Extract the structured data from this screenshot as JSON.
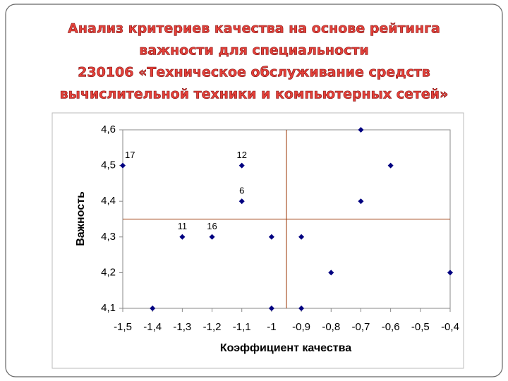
{
  "chart_data": {
    "type": "scatter",
    "title": [
      "Анализ критериев качества на основе рейтинга",
      "важности для специальности",
      "230106 «Техническое обслуживание средств",
      "вычислительной техники и компьютерных сетей»"
    ],
    "x_label": "Коэффициент качества",
    "y_label": "Важность",
    "x": [
      -1.5,
      -1.4,
      -1.3,
      -1.2,
      -1.1,
      -1.1,
      -1.0,
      -1.0,
      -0.9,
      -0.9,
      -0.8,
      -0.7,
      -0.7,
      -0.6,
      -0.4
    ],
    "values": [
      4.5,
      4.1,
      4.3,
      4.3,
      4.5,
      4.4,
      4.3,
      4.1,
      4.3,
      4.1,
      4.2,
      4.6,
      4.4,
      4.5,
      4.2
    ],
    "point_labels": [
      "17",
      null,
      "11",
      "16",
      "12",
      "6",
      null,
      null,
      null,
      null,
      null,
      null,
      null,
      null,
      null
    ],
    "color": "#000080",
    "reference_line_color": "#993300",
    "vline": -0.95,
    "hline": 4.35,
    "xlim": [
      -1.5,
      -0.4
    ],
    "ylim": [
      4.1,
      4.6
    ],
    "xticks": [
      {
        "value": -1.5,
        "label": "-1,5"
      },
      {
        "value": -1.4,
        "label": "-1,4"
      },
      {
        "value": -1.3,
        "label": "-1,3"
      },
      {
        "value": -1.2,
        "label": "-1,2"
      },
      {
        "value": -1.1,
        "label": "-1,1"
      },
      -1,
      {
        "value": -0.9,
        "label": "-0,9"
      },
      {
        "value": -0.8,
        "label": "-0,8"
      },
      {
        "value": -0.7,
        "label": "-0,7"
      },
      {
        "value": -0.6,
        "label": "-0,6"
      },
      {
        "value": -0.5,
        "label": "-0,5"
      },
      {
        "value": -0.4,
        "label": "-0,4"
      }
    ],
    "yticks": [
      {
        "value": 4.1,
        "label": "4,1"
      },
      {
        "value": 4.2,
        "label": "4,2"
      },
      {
        "value": 4.3,
        "label": "4,3"
      },
      {
        "value": 4.4,
        "label": "4,4"
      },
      {
        "value": 4.5,
        "label": "4,5"
      },
      {
        "value": 4.6,
        "label": "4,6"
      }
    ]
  }
}
